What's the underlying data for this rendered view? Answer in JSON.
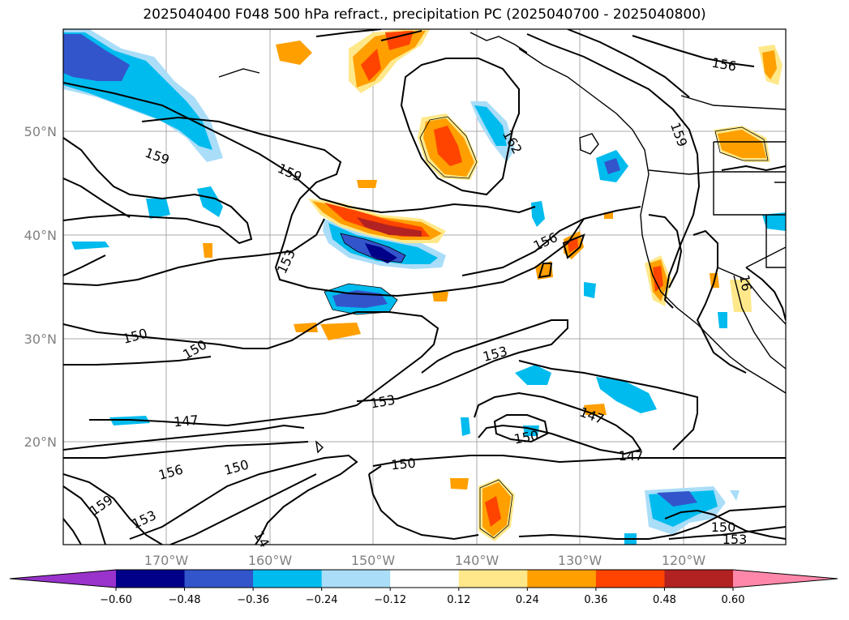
{
  "title": "2025040400 F048 500 hPa refract., precipitation PC (2025040700 - 2025040800)",
  "lat_labels": [
    "50°N",
    "40°N",
    "30°N",
    "20°N"
  ],
  "lon_labels": [
    "170°W",
    "160°W",
    "150°W",
    "140°W",
    "130°W",
    "120°W"
  ],
  "contour_labels": [
    "156",
    "159",
    "162",
    "159",
    "159",
    "153",
    "156",
    "150",
    "150",
    "153",
    "153",
    "147",
    "147",
    "150",
    "147",
    "156",
    "150",
    "150",
    "159",
    "153",
    "150",
    "153",
    "14",
    "16"
  ],
  "colorbar": {
    "ticks": [
      "−0.60",
      "−0.48",
      "−0.36",
      "−0.24",
      "−0.12",
      "0.12",
      "0.24",
      "0.36",
      "0.48",
      "0.60"
    ],
    "colors": [
      "#9933cc",
      "#000088",
      "#3355cc",
      "#00bbee",
      "#aaddf8",
      "#ffffff",
      "#ffe88a",
      "#ff9f00",
      "#ff4400",
      "#b22222",
      "#ff88aa"
    ]
  }
}
